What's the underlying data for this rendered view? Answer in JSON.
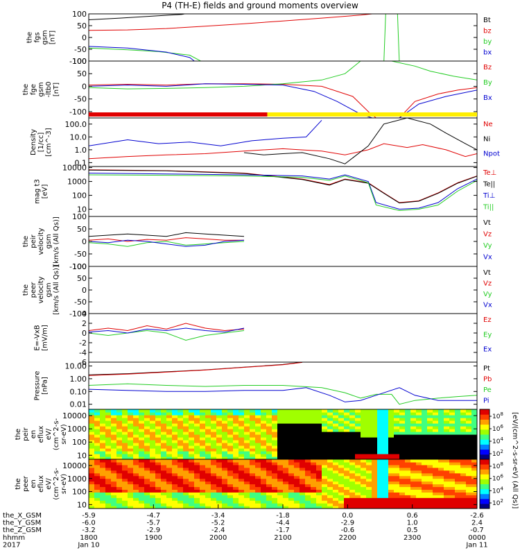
{
  "title": "P4 (TH-E) fields and ground moments overview",
  "colors": {
    "black": "#000000",
    "red": "#e00000",
    "green": "#22cc22",
    "blue": "#0000d0",
    "yellow": "#ffee00"
  },
  "chart_data": [
    {
      "type": "line",
      "panel": "fgs",
      "ylabel": [
        "the",
        "fgs",
        "gsm",
        "[nT]"
      ],
      "ylim": [
        -100,
        100
      ],
      "yticks": [
        "100",
        "50",
        "0",
        "-50",
        "-100"
      ],
      "legend": [
        "Bt",
        "bz",
        "by",
        "bx"
      ],
      "legend_colors": [
        "#000000",
        "#e00000",
        "#22cc22",
        "#0000d0"
      ],
      "series": [
        {
          "name": "Bt",
          "color": "#000000",
          "x": [
            0,
            0.08,
            0.16,
            0.24,
            0.28
          ],
          "y": [
            75,
            82,
            90,
            98,
            110
          ]
        },
        {
          "name": "bz",
          "color": "#e00000",
          "x": [
            0,
            0.1,
            0.2,
            0.3,
            0.4,
            0.5,
            0.6,
            0.7,
            0.79
          ],
          "y": [
            30,
            32,
            38,
            48,
            58,
            70,
            82,
            95,
            110
          ]
        },
        {
          "name": "by",
          "color": "#22cc22",
          "x": [
            0,
            0.1,
            0.18,
            0.26,
            0.3,
            0.76,
            0.765,
            0.795,
            0.8
          ],
          "y": [
            -45,
            -52,
            -60,
            -75,
            -110,
            -110,
            110,
            110,
            -110
          ]
        },
        {
          "name": "bx",
          "color": "#0000d0",
          "x": [
            0,
            0.1,
            0.2,
            0.26,
            0.28
          ],
          "y": [
            -38,
            -45,
            -62,
            -85,
            -110
          ]
        }
      ]
    },
    {
      "type": "line",
      "panel": "fge",
      "ylabel": [
        "the",
        "fge",
        "gsm",
        "-ltb0",
        "[nT]"
      ],
      "ylim": [
        -125,
        100
      ],
      "yticks": [
        "100",
        "50",
        "0",
        "-50",
        "-100"
      ],
      "legend": [
        "Bz",
        "By",
        "Bx"
      ],
      "legend_colors": [
        "#e00000",
        "#22cc22",
        "#0000d0"
      ],
      "series": [
        {
          "name": "Bz",
          "color": "#e00000",
          "x": [
            0,
            0.1,
            0.2,
            0.3,
            0.4,
            0.5,
            0.6,
            0.68,
            0.72,
            0.74,
            0.8,
            0.84,
            0.9,
            0.95,
            1.0
          ],
          "y": [
            5,
            8,
            5,
            10,
            10,
            8,
            0,
            -40,
            -100,
            -125,
            -125,
            -60,
            -30,
            -15,
            -5
          ]
        },
        {
          "name": "By",
          "color": "#22cc22",
          "x": [
            0,
            0.1,
            0.2,
            0.3,
            0.4,
            0.5,
            0.6,
            0.66,
            0.7,
            0.74,
            0.78,
            0.84,
            0.88,
            0.94,
            1.0
          ],
          "y": [
            -5,
            -10,
            -8,
            -5,
            0,
            10,
            25,
            50,
            100,
            100,
            100,
            80,
            60,
            40,
            25
          ]
        },
        {
          "name": "Bx",
          "color": "#0000d0",
          "x": [
            0,
            0.1,
            0.2,
            0.3,
            0.4,
            0.5,
            0.58,
            0.64,
            0.7,
            0.73,
            0.8,
            0.85,
            0.92,
            1.0
          ],
          "y": [
            0,
            5,
            0,
            10,
            8,
            5,
            -20,
            -60,
            -110,
            -125,
            -125,
            -70,
            -40,
            -15
          ]
        }
      ]
    },
    {
      "type": "line",
      "panel": "density",
      "ylabel": [
        "Density",
        "[1/cc]",
        "[cm^-3]"
      ],
      "scale": "log",
      "ylim": [
        0.05,
        300
      ],
      "yticks": [
        "100.0",
        "10.0",
        "1.0",
        "0.1"
      ],
      "legend": [
        "Ne",
        "Ni",
        "Npot"
      ],
      "legend_colors": [
        "#e00000",
        "#000000",
        "#0000d0"
      ],
      "series": [
        {
          "name": "Ne",
          "color": "#e00000",
          "x": [
            0,
            0.1,
            0.2,
            0.3,
            0.4,
            0.5,
            0.6,
            0.66,
            0.72,
            0.76,
            0.82,
            0.86,
            0.92,
            0.97,
            1.0
          ],
          "y": [
            0.2,
            0.3,
            0.4,
            0.5,
            0.8,
            1.2,
            0.8,
            0.4,
            1.0,
            3.0,
            1.5,
            2.5,
            1.0,
            0.3,
            0.5
          ]
        },
        {
          "name": "Ni",
          "color": "#000000",
          "x": [
            0.4,
            0.45,
            0.5,
            0.55,
            0.62,
            0.66,
            0.72,
            0.76,
            0.82,
            0.88,
            0.92,
            0.97,
            1.0
          ],
          "y": [
            0.6,
            0.4,
            0.5,
            0.6,
            0.2,
            0.08,
            2.0,
            100,
            300,
            100,
            20,
            3,
            1
          ]
        },
        {
          "name": "Npot",
          "color": "#0000d0",
          "x": [
            0,
            0.1,
            0.18,
            0.26,
            0.34,
            0.42,
            0.5,
            0.56,
            0.6
          ],
          "y": [
            2.0,
            6.0,
            3.0,
            4.0,
            2.0,
            5.0,
            8.0,
            10.0,
            200
          ]
        }
      ]
    },
    {
      "type": "line",
      "panel": "temperature",
      "ylabel": [
        "mag t3",
        "[eV]"
      ],
      "scale": "log",
      "ylim": [
        3,
        12000
      ],
      "yticks": [
        "10000",
        "1000",
        "100",
        "10"
      ],
      "legend": [
        "Te⊥",
        "Te||",
        "Ti⊥",
        "Ti||"
      ],
      "legend_colors": [
        "#e00000",
        "#000000",
        "#0000d0",
        "#22cc22"
      ],
      "series": [
        {
          "name": "Te⊥",
          "color": "#e00000",
          "x": [
            0,
            0.2,
            0.4,
            0.55,
            0.62,
            0.66,
            0.72,
            0.76,
            0.8,
            0.85,
            0.9,
            0.95,
            1.0
          ],
          "y": [
            7000,
            6000,
            4000,
            1500,
            600,
            1500,
            800,
            150,
            30,
            40,
            150,
            800,
            2500
          ]
        },
        {
          "name": "Te||",
          "color": "#000000",
          "x": [
            0,
            0.2,
            0.4,
            0.55,
            0.62,
            0.66,
            0.72,
            0.76,
            0.8,
            0.85,
            0.9,
            0.95,
            1.0
          ],
          "y": [
            6500,
            5800,
            3800,
            1400,
            550,
            1400,
            750,
            140,
            28,
            38,
            140,
            750,
            2400
          ]
        },
        {
          "name": "Ti⊥",
          "color": "#0000d0",
          "x": [
            0,
            0.2,
            0.4,
            0.55,
            0.62,
            0.66,
            0.72,
            0.74,
            0.8,
            0.85,
            0.9,
            0.95,
            1.0
          ],
          "y": [
            4000,
            3500,
            3000,
            2500,
            1500,
            3000,
            1000,
            30,
            10,
            12,
            30,
            300,
            1500
          ]
        },
        {
          "name": "Ti||",
          "color": "#22cc22",
          "x": [
            0,
            0.2,
            0.4,
            0.55,
            0.62,
            0.66,
            0.72,
            0.74,
            0.8,
            0.85,
            0.9,
            0.95,
            1.0
          ],
          "y": [
            3000,
            2800,
            2500,
            2000,
            1200,
            2500,
            800,
            20,
            8,
            10,
            20,
            200,
            1200
          ]
        }
      ]
    },
    {
      "type": "line",
      "panel": "peir-velocity",
      "ylabel": [
        "the",
        "peir",
        "velocity",
        "gsm",
        "[km/s (All Qs)]"
      ],
      "ylim": [
        -100,
        100
      ],
      "yticks": [
        "100",
        "50",
        "0",
        "-50",
        "-100"
      ],
      "legend": [
        "Vt",
        "Vz",
        "Vy",
        "Vx"
      ],
      "legend_colors": [
        "#000000",
        "#e00000",
        "#22cc22",
        "#0000d0"
      ],
      "series": [
        {
          "name": "Vt",
          "color": "#000000",
          "x": [
            0,
            0.05,
            0.1,
            0.15,
            0.2,
            0.25,
            0.3,
            0.35,
            0.4
          ],
          "y": [
            20,
            25,
            30,
            25,
            20,
            35,
            30,
            25,
            20
          ]
        },
        {
          "name": "Vz",
          "color": "#e00000",
          "x": [
            0,
            0.05,
            0.1,
            0.15,
            0.2,
            0.25,
            0.3,
            0.35,
            0.4
          ],
          "y": [
            5,
            10,
            0,
            8,
            5,
            15,
            10,
            5,
            5
          ]
        },
        {
          "name": "Vy",
          "color": "#22cc22",
          "x": [
            0,
            0.05,
            0.1,
            0.15,
            0.2,
            0.25,
            0.3,
            0.35,
            0.4
          ],
          "y": [
            -5,
            -10,
            -20,
            -5,
            0,
            -15,
            -10,
            -5,
            0
          ]
        },
        {
          "name": "Vx",
          "color": "#0000d0",
          "x": [
            0,
            0.05,
            0.1,
            0.15,
            0.2,
            0.25,
            0.3,
            0.35,
            0.4
          ],
          "y": [
            0,
            -5,
            5,
            0,
            -10,
            -20,
            -15,
            0,
            5
          ]
        }
      ]
    },
    {
      "type": "line",
      "panel": "peer-velocity",
      "ylabel": [
        "the",
        "peer",
        "velocity",
        "gsm",
        "[km/s (All Qs)]"
      ],
      "ylim": [
        -100,
        100
      ],
      "yticks": [
        "100",
        "50",
        "0",
        "-50",
        "-100"
      ],
      "legend": [
        "Vt",
        "Vz",
        "Vy",
        "Vx"
      ],
      "legend_colors": [
        "#000000",
        "#e00000",
        "#22cc22",
        "#0000d0"
      ],
      "series": []
    },
    {
      "type": "line",
      "panel": "efield",
      "ylabel": [
        "E=-VxB",
        "[mV/m]"
      ],
      "ylim": [
        -6,
        4
      ],
      "yticks": [
        "4",
        "2",
        "0",
        "-2",
        "-4",
        "-6"
      ],
      "legend": [
        "Ez",
        "Ey",
        "Ex"
      ],
      "legend_colors": [
        "#e00000",
        "#22cc22",
        "#0000d0"
      ],
      "series": [
        {
          "name": "Ez",
          "color": "#e00000",
          "x": [
            0,
            0.05,
            0.1,
            0.15,
            0.2,
            0.25,
            0.3,
            0.35,
            0.4
          ],
          "y": [
            0.5,
            1.0,
            0.5,
            1.5,
            0.8,
            2.0,
            1.0,
            0.5,
            0.8
          ]
        },
        {
          "name": "Ey",
          "color": "#22cc22",
          "x": [
            0,
            0.05,
            0.1,
            0.15,
            0.2,
            0.25,
            0.3,
            0.35,
            0.4
          ],
          "y": [
            0,
            -0.5,
            0,
            0.5,
            0,
            -1.5,
            -0.5,
            0,
            0.5
          ]
        },
        {
          "name": "Ex",
          "color": "#0000d0",
          "x": [
            0,
            0.05,
            0.1,
            0.15,
            0.2,
            0.25,
            0.3,
            0.35,
            0.4
          ],
          "y": [
            0.2,
            0.5,
            0,
            0.8,
            0.5,
            1.0,
            0.5,
            0.2,
            1.0
          ]
        }
      ]
    },
    {
      "type": "line",
      "panel": "pressure",
      "ylabel": [
        "Pressure",
        "[nPa]"
      ],
      "scale": "log",
      "ylim": [
        0.004,
        20
      ],
      "yticks": [
        "10.00",
        "1.00",
        "0.10",
        "0.01"
      ],
      "legend": [
        "Pt",
        "Pb",
        "Pe",
        "Pi"
      ],
      "legend_colors": [
        "#000000",
        "#e00000",
        "#22cc22",
        "#0000d0"
      ],
      "series": [
        {
          "name": "Pt",
          "color": "#000000",
          "x": [
            0,
            0.1,
            0.2,
            0.3,
            0.4,
            0.5,
            0.55
          ],
          "y": [
            2.0,
            2.5,
            3.5,
            5.0,
            8.0,
            13.0,
            20.0
          ]
        },
        {
          "name": "Pb",
          "color": "#e00000",
          "x": [
            0,
            0.1,
            0.2,
            0.3,
            0.4,
            0.5,
            0.55
          ],
          "y": [
            1.8,
            2.3,
            3.3,
            4.8,
            7.8,
            12.5,
            19.0
          ]
        },
        {
          "name": "Pe",
          "color": "#22cc22",
          "x": [
            0,
            0.1,
            0.2,
            0.3,
            0.4,
            0.5,
            0.6,
            0.66,
            0.7,
            0.74,
            0.78,
            0.8,
            0.84,
            0.9,
            0.95,
            1.0
          ],
          "y": [
            0.3,
            0.4,
            0.3,
            0.25,
            0.3,
            0.3,
            0.2,
            0.08,
            0.03,
            0.06,
            0.06,
            0.01,
            0.02,
            0.03,
            0.04,
            0.05
          ]
        },
        {
          "name": "Pi",
          "color": "#0000d0",
          "x": [
            0,
            0.1,
            0.2,
            0.3,
            0.4,
            0.5,
            0.56,
            0.62,
            0.66,
            0.7,
            0.74,
            0.8,
            0.84,
            0.9,
            0.95,
            1.0
          ],
          "y": [
            0.15,
            0.12,
            0.1,
            0.1,
            0.12,
            0.12,
            0.2,
            0.05,
            0.015,
            0.02,
            0.05,
            0.2,
            0.05,
            0.02,
            0.02,
            0.02
          ]
        }
      ]
    },
    {
      "type": "heatmap",
      "panel": "peir-eflux",
      "ylabel": [
        "the",
        "peir",
        "en",
        "eflux",
        "eV/",
        "(cm^2-s-",
        "sr-eV)"
      ],
      "scale": "log",
      "ylim": [
        5,
        30000
      ],
      "yticks": [
        "10000",
        "1000",
        "100",
        "10"
      ],
      "colorbar": {
        "ticks": [
          "10^8",
          "10^6",
          "10^4",
          "10^2"
        ],
        "label": "[eV/(cm^2-s-sr-eV) (All Qs)]"
      }
    },
    {
      "type": "heatmap",
      "panel": "peer-eflux",
      "ylabel": [
        "the",
        "peer",
        "en",
        "eflux",
        "eV/",
        "(cm^2-s-",
        "sr-eV)"
      ],
      "scale": "log",
      "ylim": [
        5,
        30000
      ],
      "yticks": [
        "10000",
        "1000",
        "100",
        "10"
      ],
      "colorbar": {
        "ticks": [
          "10^8",
          "10^6",
          "10^4",
          "10^2"
        ]
      }
    }
  ],
  "xaxis": {
    "row_labels": [
      "the_X_GSM",
      "the_Y_GSM",
      "the_Z_GSM",
      "hhmm",
      "2017"
    ],
    "columns": [
      {
        "values": [
          "-5.9",
          "-6.0",
          "-3.2",
          "1800",
          "Jan 10"
        ]
      },
      {
        "values": [
          "-4.7",
          "-5.7",
          "-2.9",
          "1900",
          ""
        ]
      },
      {
        "values": [
          "-3.4",
          "-5.2",
          "-2.4",
          "2000",
          ""
        ]
      },
      {
        "values": [
          "-1.8",
          "-4.4",
          "-1.7",
          "2100",
          ""
        ]
      },
      {
        "values": [
          "0.0",
          "-2.9",
          "-0.6",
          "2200",
          ""
        ]
      },
      {
        "values": [
          "0.6",
          "1.0",
          "0.5",
          "2300",
          ""
        ]
      },
      {
        "values": [
          "-2.6",
          "2.4",
          "-0.7",
          "0000",
          "Jan 11"
        ]
      }
    ]
  }
}
